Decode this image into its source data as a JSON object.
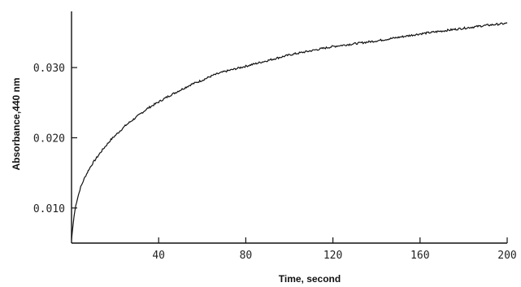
{
  "chart_data": {
    "type": "line",
    "title": "",
    "xlabel": "Time, second",
    "ylabel": "Absorbance,440 nm",
    "xlim": [
      0,
      200
    ],
    "ylim": [
      0.005,
      0.038
    ],
    "x_ticks": [
      {
        "value": 40,
        "label": "40"
      },
      {
        "value": 80,
        "label": "80"
      },
      {
        "value": 120,
        "label": "120"
      },
      {
        "value": 160,
        "label": "160"
      },
      {
        "value": 200,
        "label": "200"
      }
    ],
    "y_ticks": [
      {
        "value": 0.01,
        "label": "0.010"
      },
      {
        "value": 0.02,
        "label": "0.020"
      },
      {
        "value": 0.03,
        "label": "0.030"
      }
    ],
    "grid": false,
    "series": [
      {
        "x": [
          0,
          1,
          2,
          4,
          6,
          8,
          10,
          14,
          18,
          20,
          25,
          30,
          35,
          40,
          45,
          50,
          55,
          60,
          65,
          70,
          75,
          80,
          85,
          90,
          95,
          100,
          110,
          120,
          130,
          140,
          150,
          160,
          170,
          180,
          190,
          200
        ],
        "y": [
          0.0055,
          0.0085,
          0.0105,
          0.0128,
          0.0143,
          0.0155,
          0.0165,
          0.0182,
          0.0197,
          0.0203,
          0.0218,
          0.023,
          0.0242,
          0.0251,
          0.026,
          0.0268,
          0.0276,
          0.0282,
          0.0289,
          0.0294,
          0.0298,
          0.0302,
          0.0306,
          0.031,
          0.0314,
          0.0318,
          0.0324,
          0.033,
          0.0334,
          0.0338,
          0.0343,
          0.0348,
          0.0352,
          0.0356,
          0.036,
          0.0363
        ]
      }
    ]
  }
}
